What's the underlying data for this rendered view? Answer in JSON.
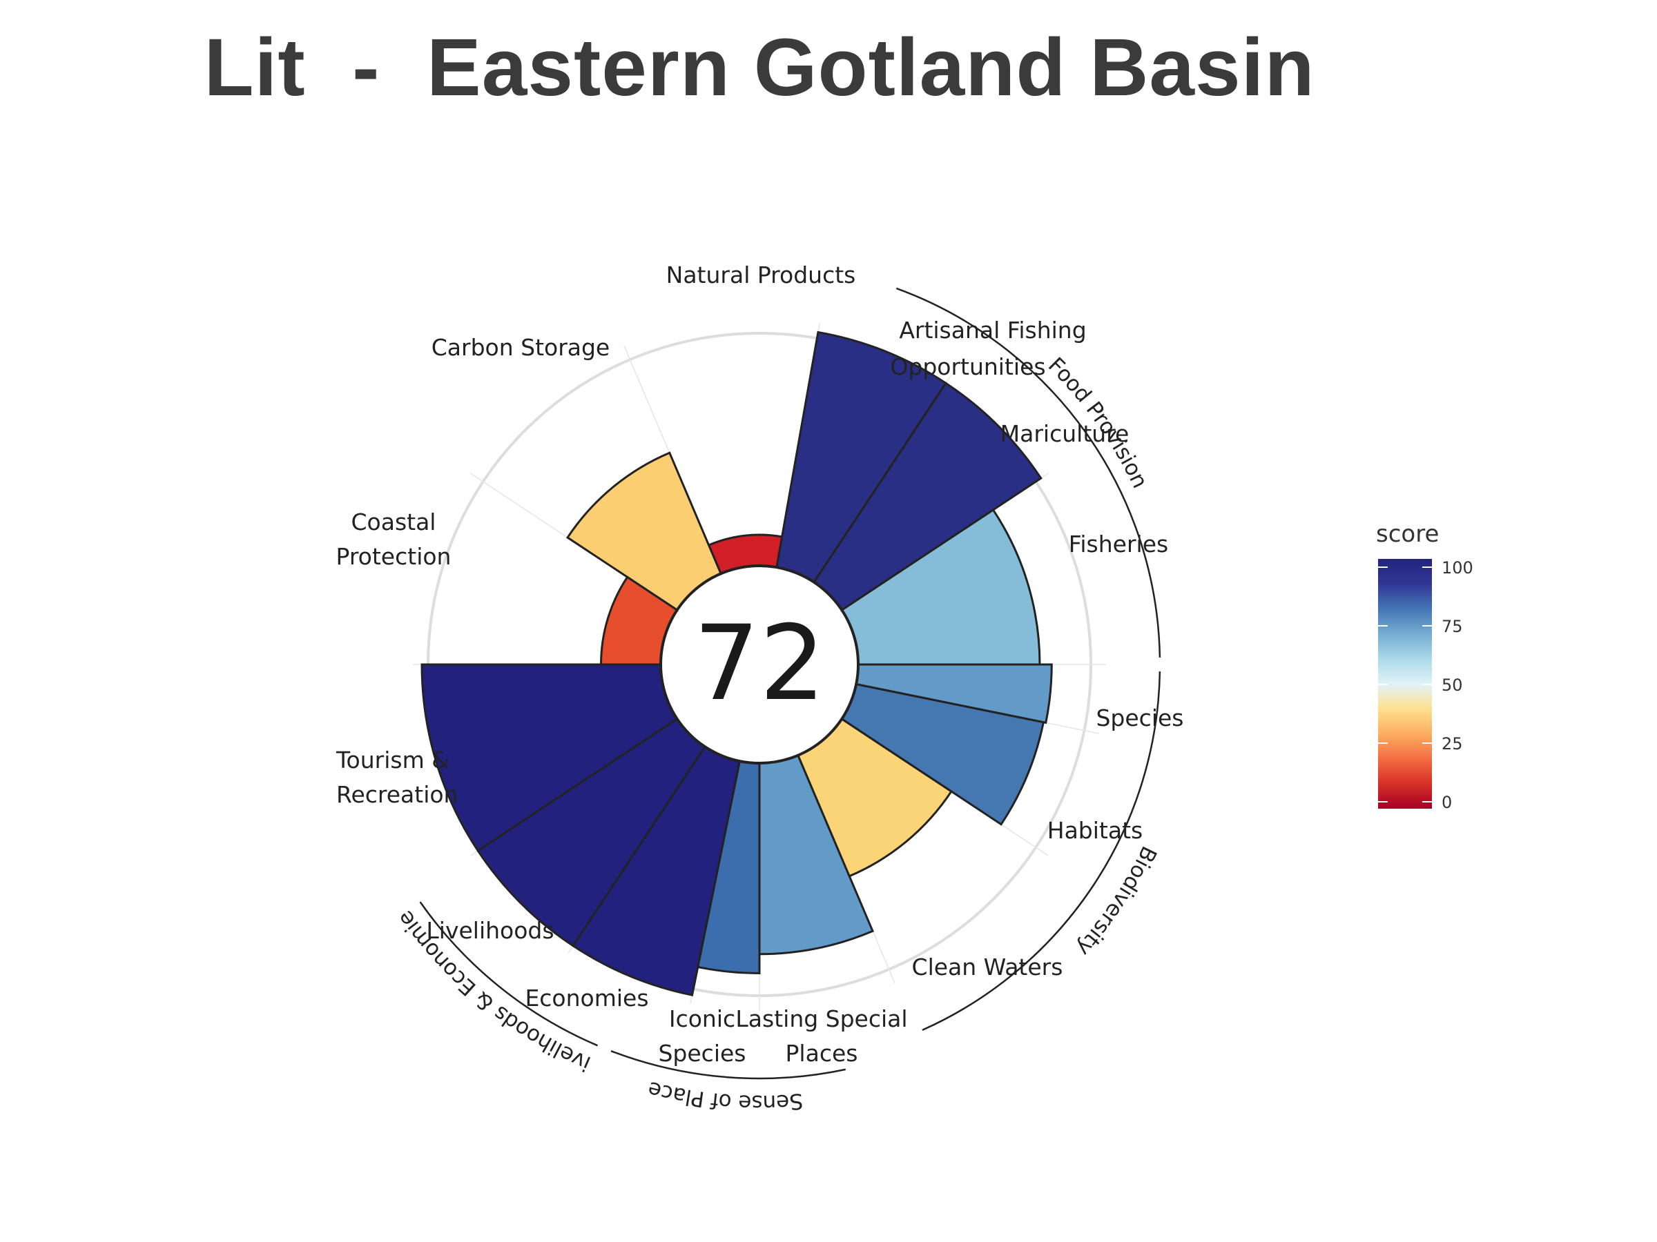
{
  "title": "Lit  -  Eastern Gotland Basin",
  "chart_data": {
    "type": "bar",
    "subtype": "polar-flower",
    "overall_score": "72",
    "ylim": [
      0,
      100
    ],
    "legend": {
      "title": "score",
      "position": "right",
      "ticks": [
        "0",
        "25",
        "50",
        "75",
        "100"
      ],
      "colors": [
        "#a50026",
        "#d73027",
        "#f46d43",
        "#fdae61",
        "#fee090",
        "#e0f3f8",
        "#abd9e9",
        "#74add1",
        "#4575b4",
        "#313695",
        "#23237e"
      ]
    },
    "goals": [
      {
        "label": "Fisheries",
        "value": 76,
        "color": "#85bcd8"
      },
      {
        "label": "Mariculture",
        "value": 100,
        "color": "#2a2f86"
      },
      {
        "label": "Artisanal Fishing Opportunities",
        "value": 100,
        "color": "#2a2f86"
      },
      {
        "label": "Natural Products",
        "value": 13,
        "color": "#d21f27"
      },
      {
        "label": "Carbon Storage",
        "value": 55,
        "color": "#fcce72"
      },
      {
        "label": "Coastal Protection",
        "value": 25,
        "color": "#e64e2e"
      },
      {
        "label": "Tourism & Recreation",
        "value": 100,
        "color": "#22227e"
      },
      {
        "label": "Livelihoods",
        "value": 100,
        "color": "#22227e"
      },
      {
        "label": "Economies",
        "value": 100,
        "color": "#22227e"
      },
      {
        "label": "Iconic Species",
        "value": 88,
        "color": "#3c6eae"
      },
      {
        "label": "Lasting Special Places",
        "value": 80,
        "color": "#639bc8"
      },
      {
        "label": "Clean Waters",
        "value": 55,
        "color": "#fcd478"
      },
      {
        "label": "Habitats",
        "value": 80,
        "color": "#4577b1"
      },
      {
        "label": "Species",
        "value": 81,
        "color": "#639bc8"
      }
    ],
    "groups": [
      {
        "label": "Food Provision"
      },
      {
        "label": "Biodiversity"
      },
      {
        "label": "Sense of Place"
      },
      {
        "label": "Livelihoods & Economies"
      }
    ]
  }
}
